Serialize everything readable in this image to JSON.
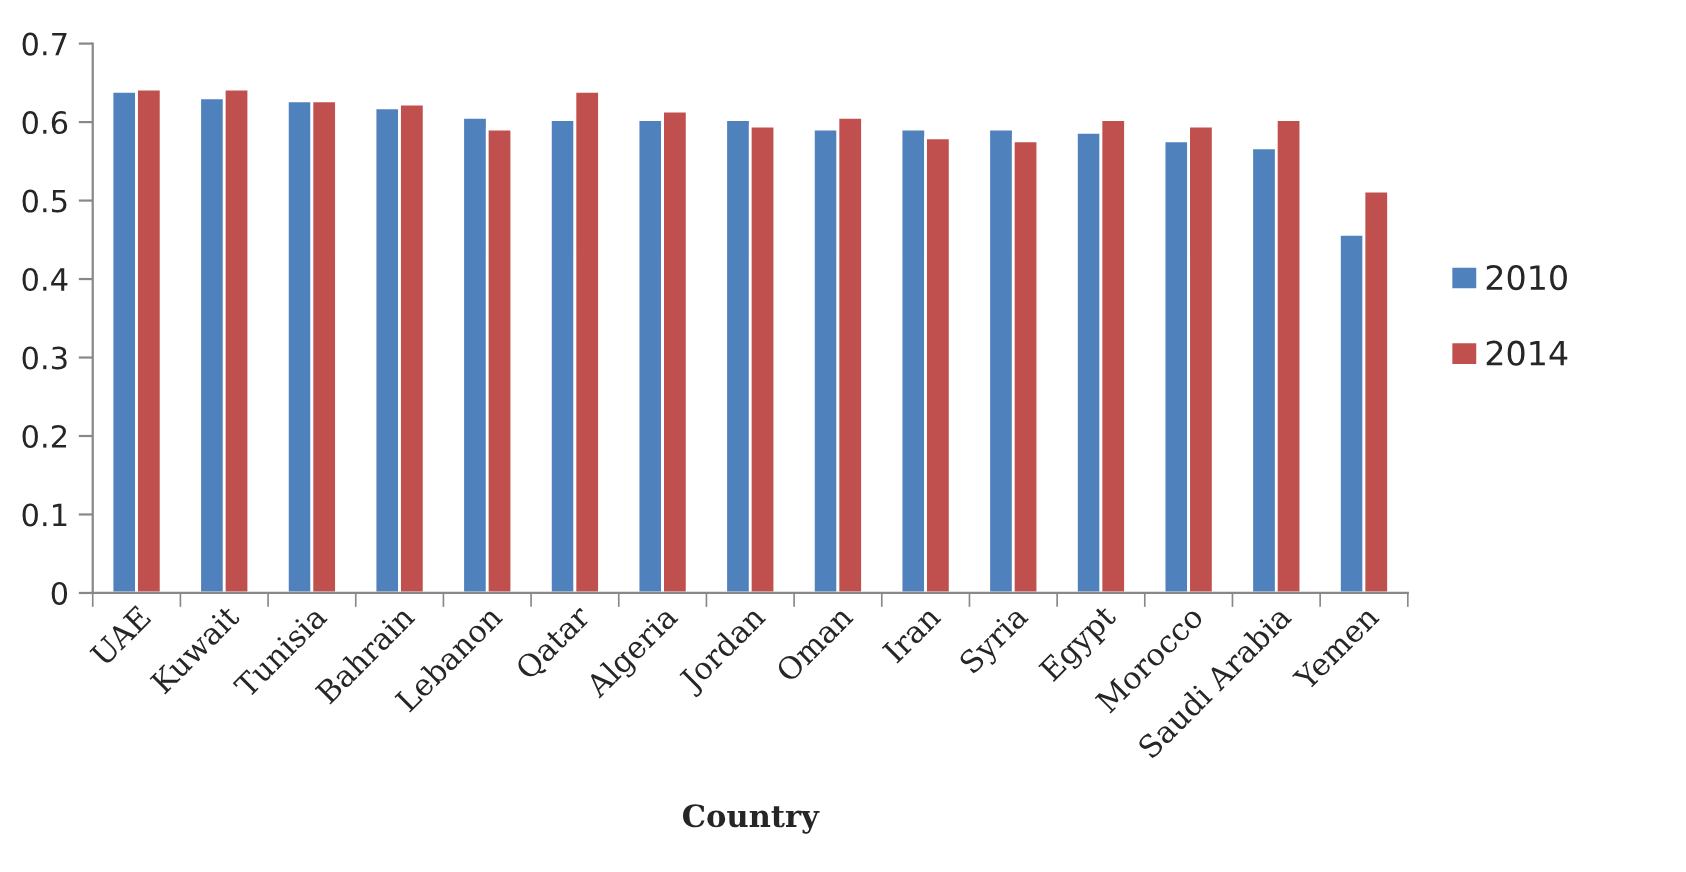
{
  "chart_data": {
    "type": "bar",
    "xlabel": "Country",
    "categories": [
      "UAE",
      "Kuwait",
      "Tunisia",
      "Bahrain",
      "Lebanon",
      "Qatar",
      "Algeria",
      "Jordan",
      "Oman",
      "Iran",
      "Syria",
      "Egypt",
      "Morocco",
      "Saudi Arabia",
      "Yemen"
    ],
    "series": [
      {
        "name": "2010",
        "color": "#4f81bd",
        "values": [
          0.639,
          0.631,
          0.627,
          0.618,
          0.606,
          0.603,
          0.603,
          0.603,
          0.591,
          0.591,
          0.591,
          0.587,
          0.576,
          0.567,
          0.457
        ]
      },
      {
        "name": "2014",
        "color": "#c0504d",
        "values": [
          0.642,
          0.642,
          0.627,
          0.623,
          0.591,
          0.639,
          0.614,
          0.595,
          0.606,
          0.58,
          0.576,
          0.603,
          0.595,
          0.603,
          0.512
        ]
      }
    ],
    "ylim": [
      0,
      0.7
    ],
    "yticks": [
      0,
      0.1,
      0.2,
      0.3,
      0.4,
      0.5,
      0.6,
      0.7
    ],
    "grid": false,
    "legend": "right"
  }
}
